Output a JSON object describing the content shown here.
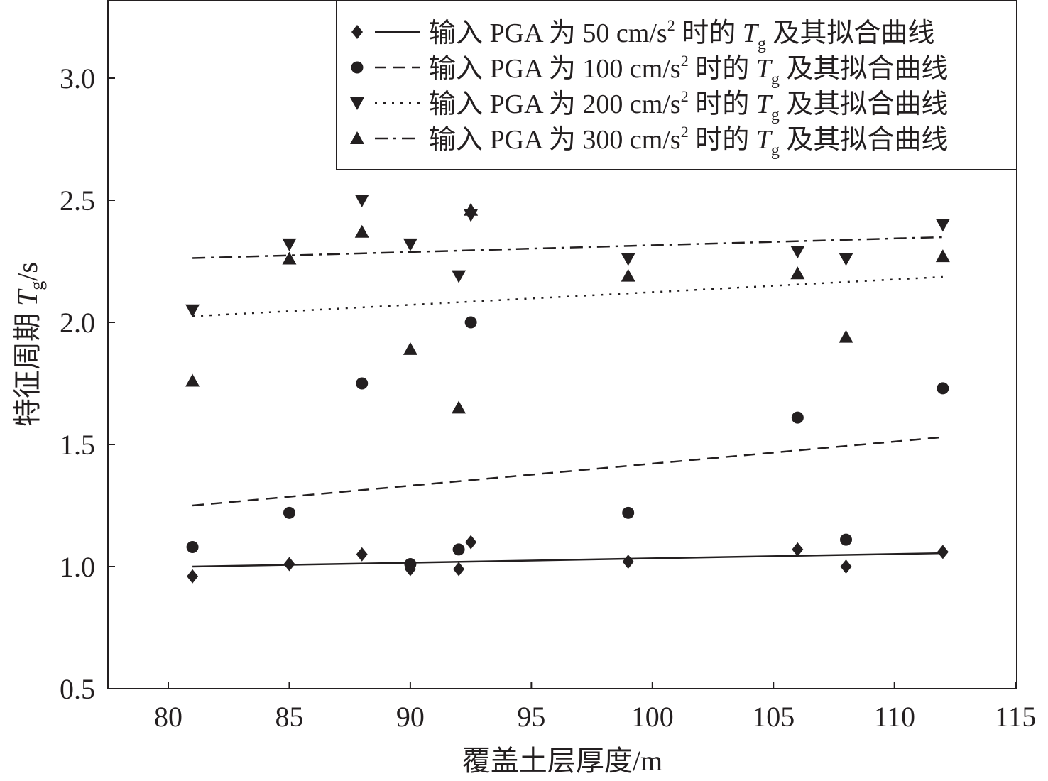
{
  "chart_data": {
    "type": "scatter",
    "xlabel": "覆盖土层厚度/m",
    "ylabel": {
      "pre": "特征周期 ",
      "var": "T",
      "sub": "g",
      "post": "/s"
    },
    "xlim": [
      77.5,
      115
    ],
    "ylim": [
      0.5,
      3.32
    ],
    "xticks": [
      "80",
      "85",
      "90",
      "95",
      "100",
      "105",
      "110",
      "115"
    ],
    "xtick_values": [
      80,
      85,
      90,
      95,
      100,
      105,
      110,
      115
    ],
    "yticks": [
      "0.5",
      "1.0",
      "1.5",
      "2.0",
      "2.5",
      "3.0"
    ],
    "ytick_values": [
      0.5,
      1.0,
      1.5,
      2.0,
      2.5,
      3.0
    ],
    "grid": false,
    "legend_position": "top-right",
    "legend_common": {
      "mid": " 时的 ",
      "var": "T",
      "sub": "g",
      "post": " 及其拟合曲线",
      "sup": "2"
    },
    "x": [
      81,
      85,
      88,
      90,
      92,
      92.5,
      99,
      106,
      108,
      112
    ],
    "series": [
      {
        "name": "输入 PGA 为 50 cm/s",
        "marker": "diamond",
        "line": "solid",
        "values": [
          0.96,
          1.01,
          1.05,
          0.99,
          0.99,
          1.1,
          1.02,
          1.07,
          1.0,
          1.06
        ],
        "fit": [
          [
            81,
            1.0
          ],
          [
            112,
            1.055
          ]
        ]
      },
      {
        "name": "输入 PGA 为 100 cm/s",
        "marker": "circle",
        "line": "dashed",
        "values": [
          1.08,
          1.22,
          1.75,
          1.01,
          1.07,
          2.0,
          1.22,
          1.61,
          1.11,
          1.73
        ],
        "fit": [
          [
            81,
            1.25
          ],
          [
            112,
            1.53
          ]
        ]
      },
      {
        "name": "输入 PGA 为 200 cm/s",
        "marker": "triangle-down",
        "line": "dotted",
        "values": [
          2.05,
          2.32,
          2.5,
          2.32,
          2.19,
          2.44,
          2.26,
          2.29,
          2.26,
          2.4
        ],
        "fit": [
          [
            81,
            2.025
          ],
          [
            112,
            2.186
          ]
        ]
      },
      {
        "name": "输入 PGA 为 300 cm/s",
        "marker": "triangle-up",
        "line": "dashdot",
        "values": [
          1.76,
          2.26,
          2.37,
          1.89,
          1.65,
          2.46,
          2.19,
          2.2,
          1.94,
          2.27
        ],
        "fit": [
          [
            81,
            2.263
          ],
          [
            112,
            2.349
          ]
        ]
      }
    ]
  },
  "colors": {
    "ink": "#231f20",
    "background": "#ffffff"
  }
}
